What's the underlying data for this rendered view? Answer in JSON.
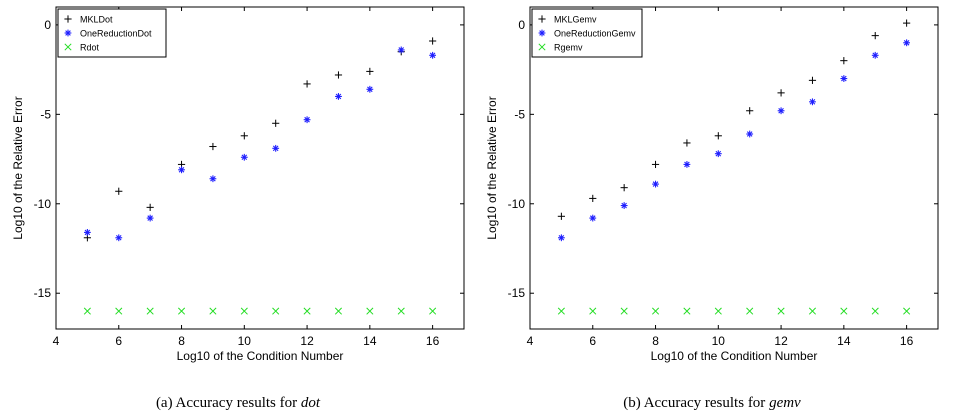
{
  "chart_data": [
    {
      "type": "scatter",
      "caption_prefix": "(a) Accuracy results for ",
      "caption_em": "dot",
      "xlabel": "Log10 of the Condition Number",
      "ylabel": "Log10 of the Relative Error",
      "xlim": [
        4,
        17
      ],
      "ylim": [
        -17,
        1
      ],
      "xticks": [
        4,
        6,
        8,
        10,
        12,
        14,
        16
      ],
      "yticks": [
        0,
        -5,
        -10,
        -15
      ],
      "legend_position": "top-left",
      "series": [
        {
          "name": "MKLDot",
          "marker": "plus",
          "color": "#000000",
          "x": [
            5,
            6,
            7,
            8,
            9,
            10,
            11,
            12,
            13,
            14,
            15,
            16
          ],
          "y": [
            -11.9,
            -9.3,
            -10.2,
            -7.8,
            -6.8,
            -6.2,
            -5.5,
            -3.3,
            -2.8,
            -2.6,
            -1.5,
            -0.9
          ]
        },
        {
          "name": "OneReductionDot",
          "marker": "star",
          "color": "#1f1fff",
          "x": [
            5,
            6,
            7,
            8,
            9,
            10,
            11,
            12,
            13,
            14,
            15,
            16
          ],
          "y": [
            -11.6,
            -11.9,
            -10.8,
            -8.1,
            -8.6,
            -7.4,
            -6.9,
            -5.3,
            -4.0,
            -3.6,
            -1.4,
            -1.7
          ]
        },
        {
          "name": "Rdot",
          "marker": "x",
          "color": "#22dd22",
          "x": [
            5,
            6,
            7,
            8,
            9,
            10,
            11,
            12,
            13,
            14,
            15,
            16
          ],
          "y": [
            -16,
            -16,
            -16,
            -16,
            -16,
            -16,
            -16,
            -16,
            -16,
            -16,
            -16,
            -16
          ]
        }
      ]
    },
    {
      "type": "scatter",
      "caption_prefix": "(b) Accuracy results for ",
      "caption_em": "gemv",
      "xlabel": "Log10 of the Condition Number",
      "ylabel": "Log10 of the Relative Error",
      "xlim": [
        4,
        17
      ],
      "ylim": [
        -17,
        1
      ],
      "xticks": [
        4,
        6,
        8,
        10,
        12,
        14,
        16
      ],
      "yticks": [
        0,
        -5,
        -10,
        -15
      ],
      "legend_position": "top-left",
      "series": [
        {
          "name": "MKLGemv",
          "marker": "plus",
          "color": "#000000",
          "x": [
            5,
            6,
            7,
            8,
            9,
            10,
            11,
            12,
            13,
            14,
            15,
            16
          ],
          "y": [
            -10.7,
            -9.7,
            -9.1,
            -7.8,
            -6.6,
            -6.2,
            -4.8,
            -3.8,
            -3.1,
            -2.0,
            -0.6,
            0.1
          ]
        },
        {
          "name": "OneReductionGemv",
          "marker": "star",
          "color": "#1f1fff",
          "x": [
            5,
            6,
            7,
            8,
            9,
            10,
            11,
            12,
            13,
            14,
            15,
            16
          ],
          "y": [
            -11.9,
            -10.8,
            -10.1,
            -8.9,
            -7.8,
            -7.2,
            -6.1,
            -4.8,
            -4.3,
            -3.0,
            -1.7,
            -1.0
          ]
        },
        {
          "name": "Rgemv",
          "marker": "x",
          "color": "#22dd22",
          "x": [
            5,
            6,
            7,
            8,
            9,
            10,
            11,
            12,
            13,
            14,
            15,
            16
          ],
          "y": [
            -16,
            -16,
            -16,
            -16,
            -16,
            -16,
            -16,
            -16,
            -16,
            -16,
            -16,
            -16
          ]
        }
      ]
    }
  ]
}
